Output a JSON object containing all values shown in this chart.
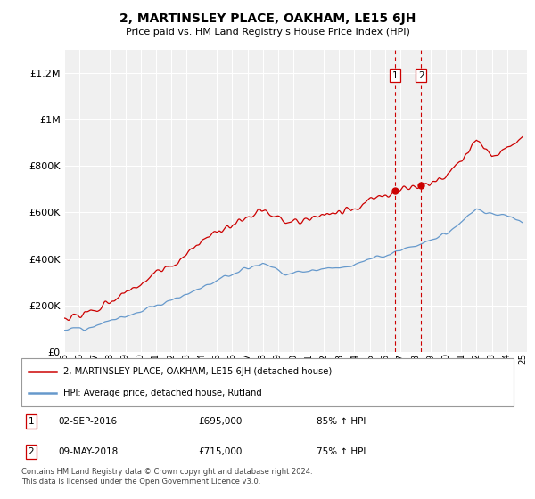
{
  "title": "2, MARTINSLEY PLACE, OAKHAM, LE15 6JH",
  "subtitle": "Price paid vs. HM Land Registry's House Price Index (HPI)",
  "ylim": [
    0,
    1300000
  ],
  "yticks": [
    0,
    200000,
    400000,
    600000,
    800000,
    1000000,
    1200000
  ],
  "ytick_labels": [
    "£0",
    "£200K",
    "£400K",
    "£600K",
    "£800K",
    "£1M",
    "£1.2M"
  ],
  "sale1_year": 2016.67,
  "sale1_price": 695000,
  "sale1_date": "02-SEP-2016",
  "sale1_hpi_str": "85% ↑ HPI",
  "sale2_year": 2018.37,
  "sale2_price": 715000,
  "sale2_date": "09-MAY-2018",
  "sale2_hpi_str": "75% ↑ HPI",
  "legend_line1": "2, MARTINSLEY PLACE, OAKHAM, LE15 6JH (detached house)",
  "legend_line2": "HPI: Average price, detached house, Rutland",
  "footer": "Contains HM Land Registry data © Crown copyright and database right 2024.\nThis data is licensed under the Open Government Licence v3.0.",
  "line_color_red": "#cc0000",
  "line_color_blue": "#6699cc",
  "grid_color": "#dddddd",
  "bg_color": "#f0f0f0"
}
